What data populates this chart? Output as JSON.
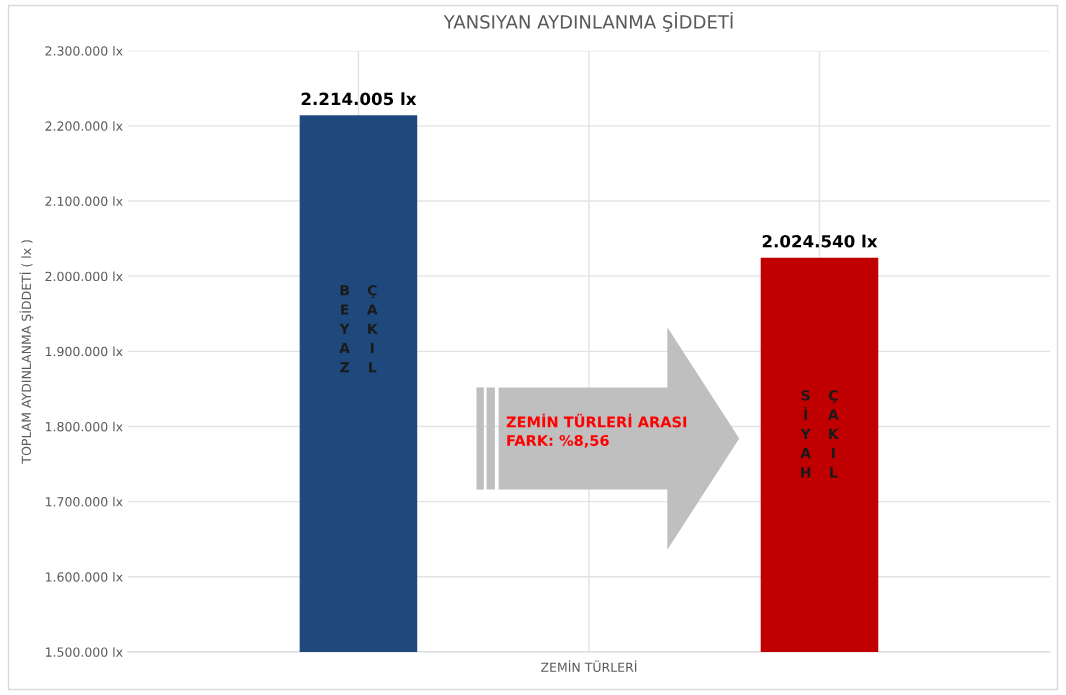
{
  "chart_data": {
    "type": "bar",
    "title": "YANSIYAN AYDINLANMA ŞİDDETİ",
    "xlabel": "ZEMİN TÜRLERİ",
    "ylabel": "TOPLAM AYDINLANMA ŞİDDETİ ( lx )",
    "categories": [
      "BEYAZ ÇAKIL",
      "SİYAH ÇAKIL"
    ],
    "values": [
      2214005,
      2024540
    ],
    "colors": [
      "#1f497d",
      "#c00000"
    ],
    "value_labels": [
      "2.214.005 lx",
      "2.024.540 lx"
    ],
    "ylim": [
      1500000,
      2300000
    ],
    "yticks": [
      {
        "value": 1500000,
        "label": "1.500.000 lx"
      },
      {
        "value": 1600000,
        "label": "1.600.000 lx"
      },
      {
        "value": 1700000,
        "label": "1.700.000 lx"
      },
      {
        "value": 1800000,
        "label": "1.800.000 lx"
      },
      {
        "value": 1900000,
        "label": "1.900.000 lx"
      },
      {
        "value": 2000000,
        "label": "2.000.000 lx"
      },
      {
        "value": 2100000,
        "label": "2.100.000 lx"
      },
      {
        "value": 2200000,
        "label": "2.200.000 lx"
      },
      {
        "value": 2300000,
        "label": "2.300.000 lx"
      }
    ],
    "grid": true,
    "annotations": [
      "ZEMİN TÜRLERİ ARASI\nFARK: %8,56"
    ]
  }
}
